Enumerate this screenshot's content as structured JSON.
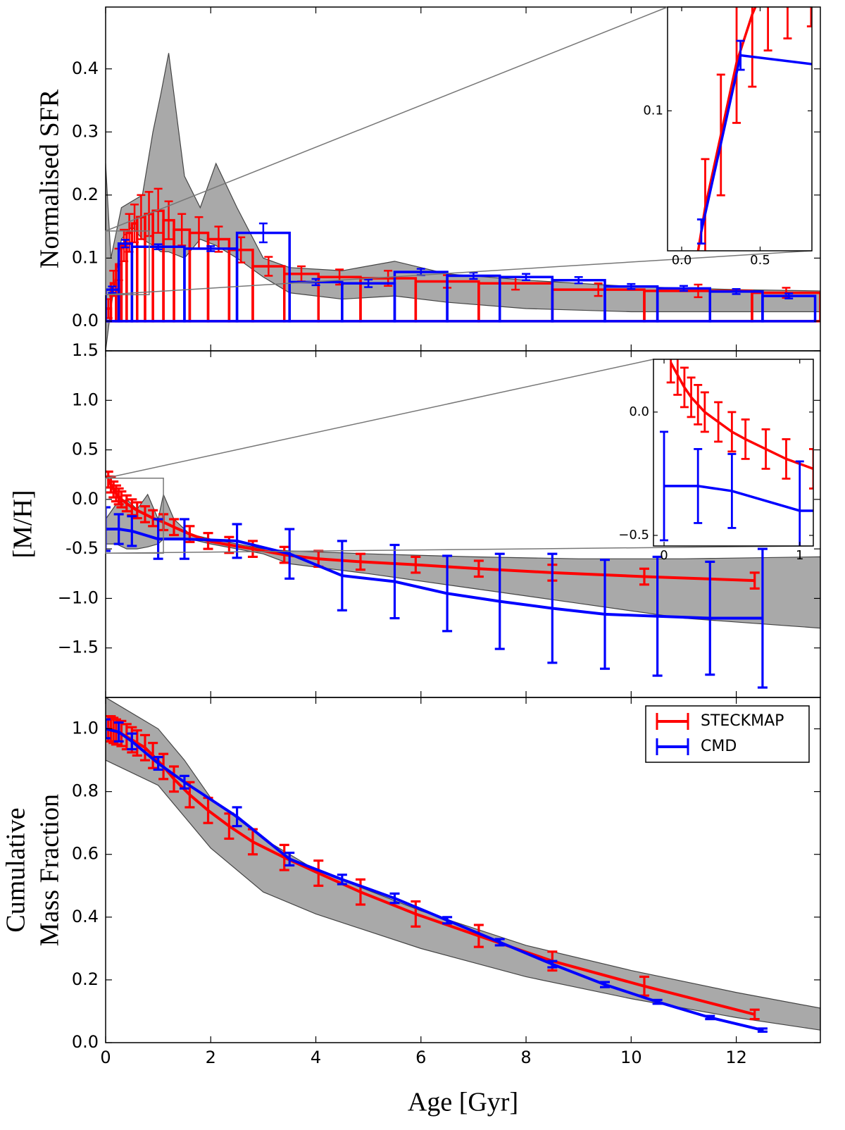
{
  "chart_data": [
    {
      "type": "histogram",
      "ylabel": "Normalised SFR",
      "xlim": [
        0,
        13.6
      ],
      "ylim": [
        -0.047,
        0.498
      ],
      "yticks": [
        {
          "value": 0,
          "label": "0.0"
        },
        0.1,
        0.2,
        0.3,
        0.4
      ],
      "band": {
        "color": "#a9a9a9",
        "x": [
          0,
          0.1,
          0.3,
          0.5,
          0.7,
          0.9,
          1.05,
          1.2,
          1.5,
          1.8,
          2.1,
          2.5,
          3.0,
          3.5,
          4.5,
          5.5,
          6.5,
          8,
          10,
          12,
          13.6
        ],
        "upper": [
          0.25,
          0.1,
          0.18,
          0.19,
          0.2,
          0.3,
          0.36,
          0.425,
          0.23,
          0.18,
          0.25,
          0.18,
          0.1,
          0.085,
          0.08,
          0.095,
          0.075,
          0.065,
          0.055,
          0.05,
          0.048
        ],
        "lower": [
          -0.047,
          0.02,
          0.13,
          0.15,
          0.13,
          0.12,
          0.11,
          0.11,
          0.1,
          0.13,
          0.12,
          0.1,
          0.07,
          0.045,
          0.035,
          0.04,
          0.03,
          0.02,
          0.015,
          0.015,
          0.015
        ]
      },
      "series": [
        {
          "color": "#ff0000",
          "bins": [
            0,
            0.1,
            0.2,
            0.3,
            0.4,
            0.5,
            0.6,
            0.75,
            0.9,
            1.1,
            1.3,
            1.6,
            1.95,
            2.35,
            2.8,
            3.4,
            4.05,
            4.85,
            5.9,
            7.1,
            8.5,
            10.25,
            12.3,
            13.6
          ],
          "values": [
            0.02,
            0.06,
            0.09,
            0.12,
            0.14,
            0.155,
            0.165,
            0.17,
            0.175,
            0.16,
            0.145,
            0.14,
            0.13,
            0.113,
            0.087,
            0.075,
            0.07,
            0.068,
            0.063,
            0.06,
            0.05,
            0.048,
            0.045
          ],
          "errors": [
            0.015,
            0.02,
            0.025,
            0.025,
            0.03,
            0.03,
            0.035,
            0.035,
            0.035,
            0.03,
            0.025,
            0.025,
            0.02,
            0.02,
            0.015,
            0.012,
            0.012,
            0.012,
            0.01,
            0.01,
            0.01,
            0.01,
            0.008
          ]
        },
        {
          "color": "#0000ff",
          "bins": [
            0,
            0.25,
            0.5,
            1.5,
            2.5,
            3.5,
            4.5,
            5.5,
            6.5,
            7.5,
            8.5,
            9.5,
            10.5,
            11.5,
            12.5,
            13.5
          ],
          "values": [
            0.05,
            0.123,
            0.118,
            0.115,
            0.14,
            0.062,
            0.06,
            0.078,
            0.072,
            0.07,
            0.065,
            0.055,
            0.052,
            0.047,
            0.04
          ],
          "errors": [
            0.005,
            0.006,
            0.004,
            0.004,
            0.015,
            0.005,
            0.006,
            0.005,
            0.005,
            0.005,
            0.005,
            0.004,
            0.004,
            0.004,
            0.004
          ]
        }
      ],
      "inset": {
        "xlim": [
          -0.09,
          0.83
        ],
        "ylim": [
          0.042,
          0.143
        ],
        "xticks": [
          {
            "value": 0,
            "label": "0.0"
          },
          0.5
        ],
        "yticks": [
          0.1
        ]
      }
    },
    {
      "type": "line",
      "ylabel": "[M/H]",
      "xlim": [
        0,
        13.6
      ],
      "ylim": [
        -2.0,
        1.5
      ],
      "yticks": [
        {
          "value": 1.5,
          "label": "1.5"
        },
        {
          "value": 1,
          "label": "1.0"
        },
        0.5,
        {
          "value": 0,
          "label": "0.0"
        },
        -0.5,
        {
          "value": -1,
          "label": "−1.0"
        },
        {
          "value": -1.5,
          "label": "−1.5"
        }
      ],
      "band": {
        "color": "#a9a9a9",
        "x": [
          0,
          0.2,
          0.4,
          0.6,
          0.8,
          1.0,
          1.1,
          1.3,
          1.6,
          2,
          3,
          3.5,
          5,
          7,
          9,
          11,
          13.6
        ],
        "upper": [
          -0.2,
          -0.05,
          0.0,
          -0.1,
          0.05,
          -0.2,
          0.05,
          -0.2,
          -0.35,
          -0.4,
          -0.5,
          -0.52,
          -0.55,
          -0.58,
          -0.6,
          -0.6,
          -0.58
        ],
        "lower": [
          -0.45,
          -0.45,
          -0.5,
          -0.5,
          -0.48,
          -0.45,
          -0.4,
          -0.4,
          -0.4,
          -0.45,
          -0.55,
          -0.65,
          -0.75,
          -0.9,
          -1.05,
          -1.2,
          -1.3
        ]
      },
      "series": [
        {
          "color": "#ff0000",
          "x": [
            0.05,
            0.1,
            0.15,
            0.2,
            0.25,
            0.3,
            0.4,
            0.5,
            0.6,
            0.75,
            0.9,
            1.1,
            1.3,
            1.6,
            1.95,
            2.35,
            2.8,
            3.4,
            4.05,
            4.85,
            5.9,
            7.1,
            8.5,
            10.25,
            12.35
          ],
          "values": [
            0.2,
            0.15,
            0.1,
            0.06,
            0.03,
            0.0,
            -0.04,
            -0.08,
            -0.11,
            -0.15,
            -0.19,
            -0.23,
            -0.28,
            -0.35,
            -0.42,
            -0.46,
            -0.5,
            -0.56,
            -0.6,
            -0.63,
            -0.66,
            -0.7,
            -0.74,
            -0.78,
            -0.82
          ],
          "errors": [
            0.08,
            0.08,
            0.08,
            0.08,
            0.08,
            0.08,
            0.08,
            0.08,
            0.08,
            0.08,
            0.08,
            0.08,
            0.08,
            0.08,
            0.08,
            0.08,
            0.08,
            0.08,
            0.08,
            0.08,
            0.08,
            0.08,
            0.08,
            0.08,
            0.08
          ]
        },
        {
          "color": "#0000ff",
          "x": [
            0,
            0.25,
            0.5,
            1.0,
            1.5,
            2.5,
            3.5,
            4.5,
            5.5,
            6.5,
            7.5,
            8.5,
            9.5,
            10.5,
            11.5,
            12.5
          ],
          "values": [
            -0.3,
            -0.3,
            -0.32,
            -0.4,
            -0.4,
            -0.42,
            -0.55,
            -0.77,
            -0.83,
            -0.95,
            -1.03,
            -1.1,
            -1.16,
            -1.18,
            -1.2,
            -1.2
          ],
          "errors": [
            0.22,
            0.15,
            0.15,
            0.2,
            0.2,
            0.17,
            0.25,
            0.35,
            0.37,
            0.38,
            0.48,
            0.55,
            0.55,
            0.6,
            0.57,
            0.7
          ]
        }
      ],
      "inset": {
        "xlim": [
          -0.078,
          1.1
        ],
        "ylim": [
          -0.543,
          0.214
        ],
        "xticks": [
          0,
          1
        ],
        "yticks": [
          {
            "value": 0,
            "label": "0.0"
          },
          {
            "value": -0.5,
            "label": "−0.5"
          }
        ]
      }
    },
    {
      "type": "line",
      "ylabel": [
        "Cumulative",
        "Mass Fraction"
      ],
      "xlabel": "Age [Gyr]",
      "xlim": [
        0,
        13.6
      ],
      "ylim": [
        0,
        1.1
      ],
      "xticks": [
        0,
        2,
        4,
        6,
        8,
        10,
        12
      ],
      "yticks": [
        {
          "value": 0,
          "label": "0.0"
        },
        0.2,
        0.4,
        0.6,
        0.8,
        {
          "value": 1,
          "label": "1.0"
        }
      ],
      "legend": "upper right",
      "band": {
        "color": "#a9a9a9",
        "x": [
          0,
          1,
          1.5,
          2,
          3,
          4,
          6,
          8,
          10,
          12,
          13.6
        ],
        "upper": [
          1.1,
          1.0,
          0.9,
          0.78,
          0.65,
          0.55,
          0.42,
          0.31,
          0.23,
          0.16,
          0.11
        ],
        "lower": [
          0.9,
          0.82,
          0.72,
          0.62,
          0.48,
          0.41,
          0.3,
          0.21,
          0.14,
          0.08,
          0.04
        ]
      },
      "series": [
        {
          "name": "STECKMAP",
          "color": "#ff0000",
          "x": [
            0.05,
            0.1,
            0.15,
            0.2,
            0.3,
            0.4,
            0.5,
            0.6,
            0.75,
            0.9,
            1.1,
            1.3,
            1.6,
            1.95,
            2.35,
            2.8,
            3.4,
            4.05,
            4.85,
            5.9,
            7.1,
            8.5,
            10.25,
            12.35
          ],
          "values": [
            1.0,
            1.0,
            0.995,
            0.99,
            0.985,
            0.975,
            0.965,
            0.955,
            0.94,
            0.915,
            0.88,
            0.84,
            0.79,
            0.74,
            0.69,
            0.64,
            0.59,
            0.54,
            0.48,
            0.41,
            0.34,
            0.26,
            0.18,
            0.09
          ],
          "errors": [
            0.04,
            0.04,
            0.04,
            0.04,
            0.04,
            0.04,
            0.04,
            0.04,
            0.04,
            0.04,
            0.04,
            0.04,
            0.04,
            0.04,
            0.04,
            0.04,
            0.04,
            0.04,
            0.04,
            0.04,
            0.035,
            0.03,
            0.03,
            0.015
          ]
        },
        {
          "name": "CMD",
          "color": "#0000ff",
          "x": [
            0,
            0.25,
            0.5,
            1.0,
            1.5,
            2.5,
            3.5,
            4.5,
            5.5,
            6.5,
            7.5,
            8.5,
            9.5,
            10.5,
            11.5,
            12.5
          ],
          "values": [
            1.0,
            0.99,
            0.96,
            0.89,
            0.83,
            0.72,
            0.585,
            0.52,
            0.46,
            0.39,
            0.32,
            0.25,
            0.185,
            0.13,
            0.08,
            0.04
          ],
          "errors": [
            0.03,
            0.03,
            0.025,
            0.02,
            0.02,
            0.03,
            0.02,
            0.015,
            0.015,
            0.01,
            0.01,
            0.01,
            0.008,
            0.006,
            0.005,
            0.005
          ]
        }
      ]
    }
  ]
}
